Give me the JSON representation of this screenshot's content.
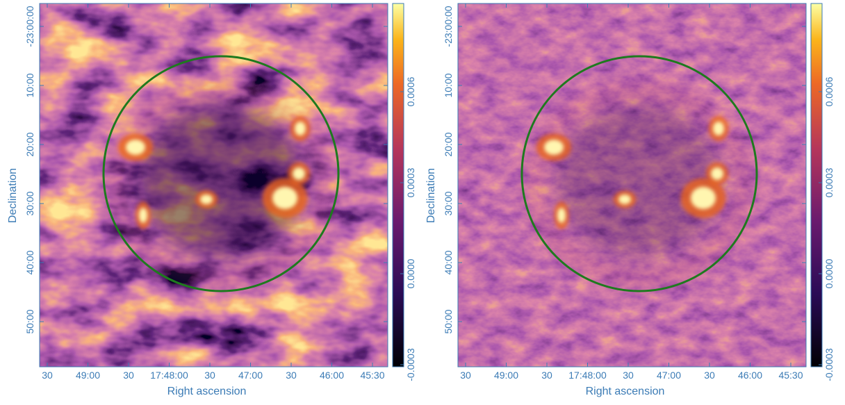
{
  "panels": [
    {
      "x_label": "Right ascension",
      "y_label": "Declination",
      "x_ticks": [
        "30",
        "49:00",
        "30",
        "17:48:00",
        "30",
        "47:00",
        "30",
        "46:00",
        "45:30"
      ],
      "y_ticks": [
        "-23:00:00",
        "10:00",
        "20:00",
        "30:00",
        "40:00",
        "50:00"
      ],
      "colorbar_ticks": [
        "0.0006",
        "0.0003",
        "0.0000",
        "-0.0003"
      ]
    },
    {
      "x_label": "Right ascension",
      "y_label": "Declination",
      "x_ticks": [
        "30",
        "49:00",
        "30",
        "17:48:00",
        "30",
        "47:00",
        "30",
        "46:00",
        "45:30"
      ],
      "y_ticks": [
        "-23:00:00",
        "10:00",
        "20:00",
        "30:00",
        "40:00",
        "50:00"
      ],
      "colorbar_ticks": [
        "0.0006",
        "0.0003",
        "0.0000",
        "-0.0003"
      ]
    }
  ]
}
